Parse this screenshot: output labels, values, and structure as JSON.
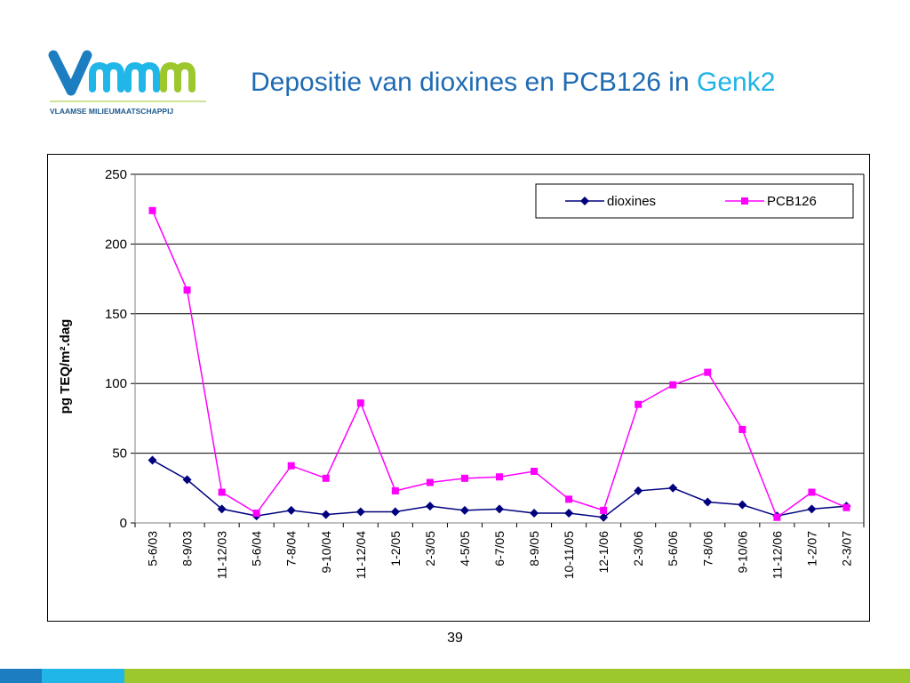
{
  "slide": {
    "title_main": "Depositie van dioxines en PCB126 in",
    "title_accent": "Genk2",
    "page_number": "39",
    "logo_text": "VLAAMSE MILIEUMAATSCHAPPIJ"
  },
  "colors": {
    "title": "#1f6bb3",
    "accent": "#1fb3e6",
    "dioxines": "#00007f",
    "pcb126": "#ff00ff",
    "bar_blue": "#1c7dc1",
    "bar_cyan": "#21b6e8",
    "bar_green": "#9cc82e"
  },
  "chart_data": {
    "type": "line",
    "title": "",
    "xlabel": "",
    "ylabel": "pg TEQ/m².dag",
    "ylim": [
      0,
      250
    ],
    "yticks": [
      0,
      50,
      100,
      150,
      200,
      250
    ],
    "grid": true,
    "legend_position": "top-right",
    "categories": [
      "5-6/03",
      "8-9/03",
      "11-12/03",
      "5-6/04",
      "7-8/04",
      "9-10/04",
      "11-12/04",
      "1-2/05",
      "2-3/05",
      "4-5/05",
      "6-7/05",
      "8-9/05",
      "10-11/05",
      "12-1/06",
      "2-3/06",
      "5-6/06",
      "7-8/06",
      "9-10/06",
      "11-12/06",
      "1-2/07",
      "2-3/07"
    ],
    "series": [
      {
        "name": "dioxines",
        "marker": "diamond",
        "values": [
          45,
          31,
          10,
          5,
          9,
          6,
          8,
          8,
          12,
          9,
          10,
          7,
          7,
          4,
          23,
          25,
          15,
          13,
          5,
          10,
          12
        ]
      },
      {
        "name": "PCB126",
        "marker": "square",
        "values": [
          224,
          167,
          22,
          7,
          41,
          32,
          86,
          23,
          29,
          32,
          33,
          37,
          17,
          9,
          85,
          99,
          108,
          67,
          4,
          22,
          11
        ]
      }
    ]
  }
}
